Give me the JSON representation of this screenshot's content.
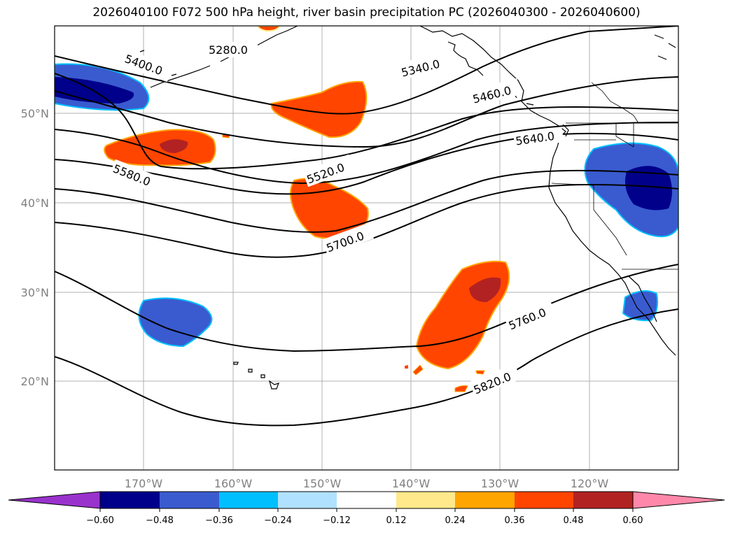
{
  "title": "2026040100 F072 500 hPa height, river basin precipitation PC (2026040300 - 2026040600)",
  "lat_labels": [
    "50°N",
    "40°N",
    "30°N",
    "20°N"
  ],
  "lon_labels": [
    "170°W",
    "160°W",
    "150°W",
    "140°W",
    "130°W",
    "120°W"
  ],
  "contour_labels": [
    "5280.0",
    "5340.0",
    "5400.0",
    "5460.0",
    "5520.0",
    "5580.0",
    "5640.0",
    "5700.0",
    "5760.0",
    "5820.0"
  ],
  "colorbar": {
    "colors": [
      "#9932cc",
      "#00008b",
      "#3a5bcf",
      "#00bfff",
      "#b0e2ff",
      "#ffffff",
      "#ffe98a",
      "#ffa500",
      "#ff4500",
      "#b22222",
      "#ff88aa"
    ],
    "tick_labels": [
      "−0.60",
      "−0.48",
      "−0.36",
      "−0.24",
      "−0.12",
      "0.12",
      "0.24",
      "0.36",
      "0.48",
      "0.60"
    ]
  }
}
